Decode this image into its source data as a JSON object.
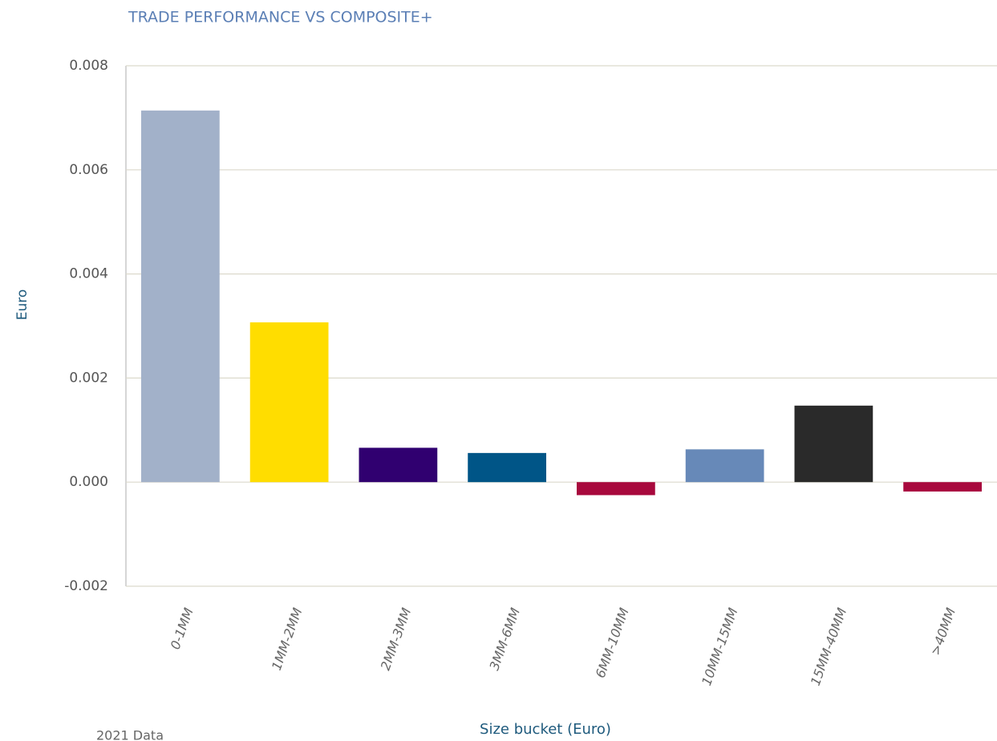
{
  "chart_data": {
    "type": "bar",
    "title": "TRADE PERFORMANCE VS COMPOSITE+",
    "x_label": "Size bucket (Euro)",
    "y_label": "Euro",
    "categories": [
      "0-1MM",
      "1MM-2MM",
      "2MM-3MM",
      "3MM-6MM",
      "6MM-10MM",
      "10MM-15MM",
      "15MM-40MM",
      ">40MM"
    ],
    "values": [
      0.00714,
      0.00307,
      0.00066,
      0.00056,
      -0.00025,
      0.00063,
      0.00147,
      -0.00018
    ],
    "colors": [
      "#a2b1c9",
      "#ffdd00",
      "#300070",
      "#005587",
      "#a8093d",
      "#6789b8",
      "#2a2a2a",
      "#a8093d"
    ],
    "ylim": [
      -0.002,
      0.008
    ],
    "yticks": [
      -0.002,
      {
        "value": 0,
        "label": "0.000"
      },
      0.002,
      0.004,
      0.006,
      0.008
    ],
    "grid": true,
    "source_note": "2021 Data"
  }
}
